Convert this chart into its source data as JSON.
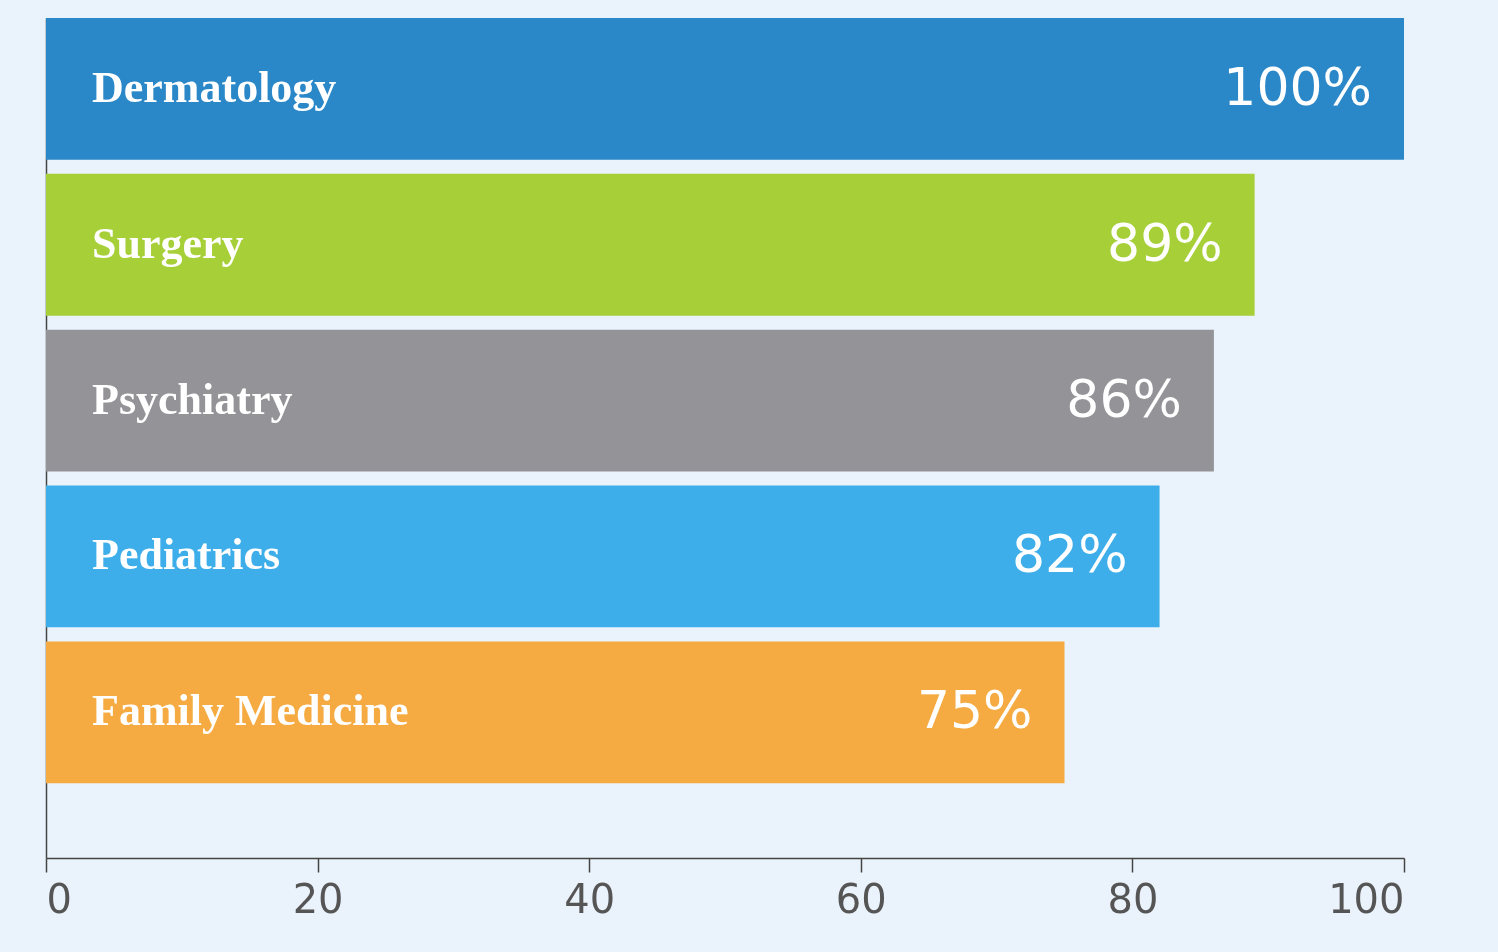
{
  "chart_data": {
    "type": "bar",
    "orientation": "horizontal",
    "categories": [
      "Dermatology",
      "Surgery",
      "Psychiatry",
      "Pediatrics",
      "Family Medicine"
    ],
    "values": [
      100,
      89,
      86,
      82,
      75
    ],
    "colors": [
      "#2b88c8",
      "#a6cf38",
      "#939398",
      "#3eaeea",
      "#f5ab41"
    ],
    "value_labels": [
      "100%",
      "89%",
      "86%",
      "82%",
      "75%"
    ],
    "xlim": [
      0,
      100
    ],
    "xticks": [
      0,
      20,
      40,
      60,
      80,
      100
    ],
    "grid": false,
    "legend": false
  }
}
